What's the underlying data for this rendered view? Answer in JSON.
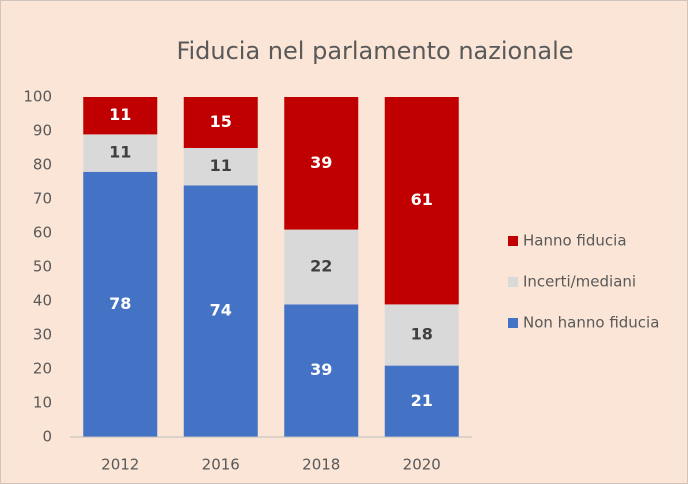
{
  "chart_data": {
    "type": "stacked_bar",
    "title": "Fiducia nel parlamento nazionale",
    "categories": [
      "2012",
      "2016",
      "2018",
      "2020"
    ],
    "series": [
      {
        "name": "Non hanno fiducia",
        "color": "#4472c4",
        "label_color": "#ffffff",
        "values": [
          78,
          74,
          39,
          21
        ]
      },
      {
        "name": "Incerti/mediani",
        "color": "#d9d9d9",
        "label_color": "#404040",
        "values": [
          11,
          11,
          22,
          18
        ]
      },
      {
        "name": "Hanno fiducia",
        "color": "#c00000",
        "label_color": "#ffffff",
        "values": [
          11,
          15,
          39,
          61
        ]
      }
    ],
    "ylim": [
      0,
      100
    ],
    "yticks": [
      0,
      10,
      20,
      30,
      40,
      50,
      60,
      70,
      80,
      90,
      100
    ],
    "grid": false,
    "legend": "right"
  }
}
